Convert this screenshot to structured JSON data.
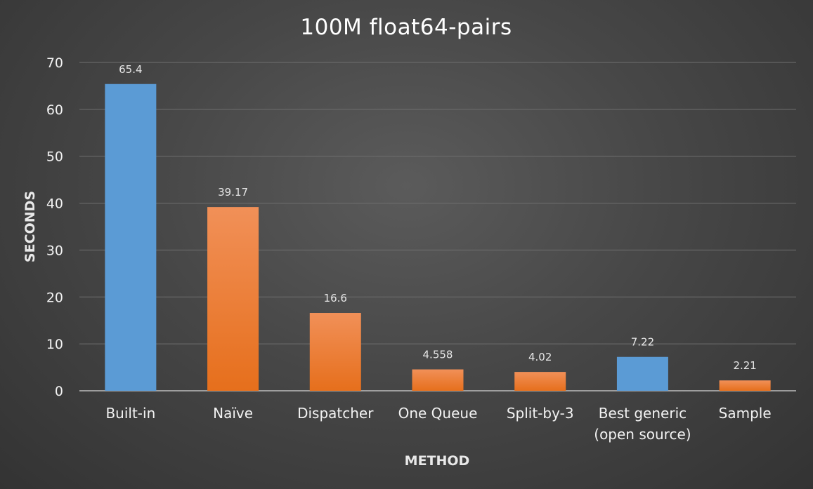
{
  "chart_data": {
    "type": "bar",
    "title": "100M float64-pairs",
    "xlabel": "METHOD",
    "ylabel": "SECONDS",
    "ylim": [
      0,
      70
    ],
    "yticks": [
      0,
      10,
      20,
      30,
      40,
      50,
      60,
      70
    ],
    "grid": true,
    "categories": [
      [
        "Built-in"
      ],
      [
        "Naïve"
      ],
      [
        "Dispatcher"
      ],
      [
        "One Queue"
      ],
      [
        "Split-by-3"
      ],
      [
        "Best generic",
        "(open source)"
      ],
      [
        "Sample"
      ]
    ],
    "values": [
      65.4,
      39.17,
      16.6,
      4.558,
      4.02,
      7.22,
      2.21
    ],
    "data_labels": [
      "65.4",
      "39.17",
      "16.6",
      "4.558",
      "4.02",
      "7.22",
      "2.21"
    ],
    "bar_colors": [
      "blue",
      "orange",
      "orange",
      "orange",
      "orange",
      "blue",
      "orange"
    ],
    "colors": {
      "blue": "#5b9bd5",
      "orange": "#ed7d31",
      "orange_light": "#f0955a"
    }
  }
}
